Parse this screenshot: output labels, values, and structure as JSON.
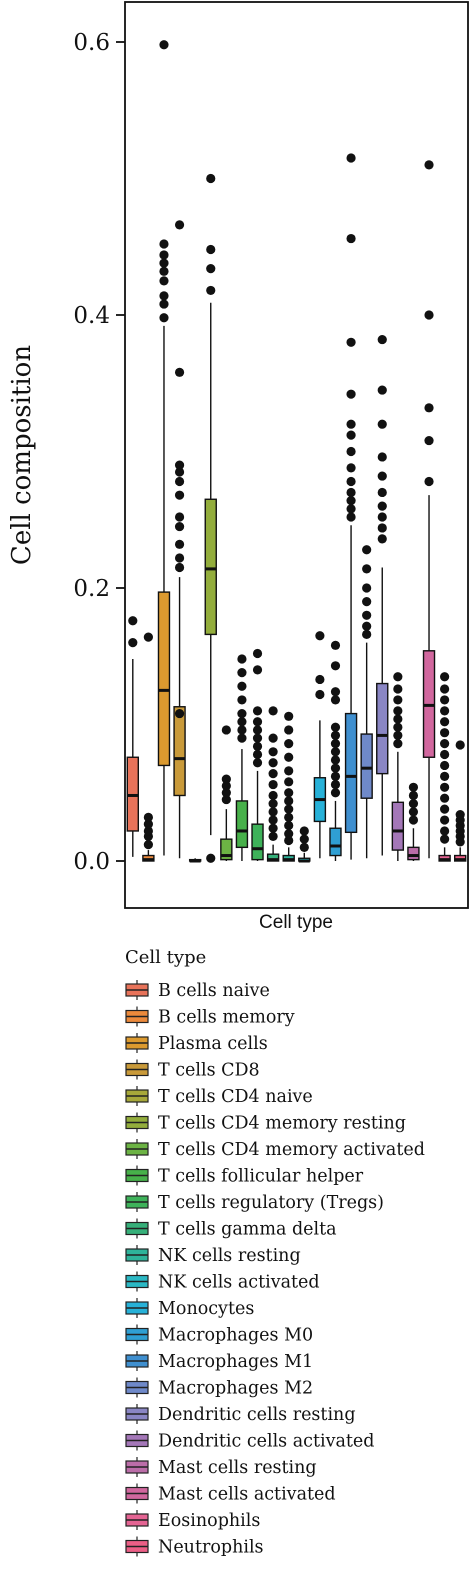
{
  "chart_data": {
    "type": "box",
    "title": "",
    "ylabel": "Cell composition",
    "xlabel": "Cell type",
    "ylim": [
      -0.012,
      0.63
    ],
    "yticks": [
      0.0,
      0.2,
      0.4,
      0.6
    ],
    "ytick_labels": [
      "0.0",
      "0.2",
      "0.4",
      "0.6"
    ],
    "grid": false,
    "legend": {
      "title": "Cell type",
      "placement": "bottom"
    },
    "categories": [
      "B cells naive",
      "B cells memory",
      "Plasma cells",
      "T cells CD8",
      "T cells CD4 naive",
      "T cells CD4 memory resting",
      "T cells CD4 memory activated",
      "T cells follicular helper",
      "T cells regulatory (Tregs)",
      "T cells gamma delta",
      "NK cells resting",
      "NK cells activated",
      "Monocytes",
      "Macrophages M0",
      "Macrophages M1",
      "Macrophages M2",
      "Dendritic cells resting",
      "Dendritic cells activated",
      "Mast cells resting",
      "Mast cells activated",
      "Eosinophils",
      "Neutrophils"
    ],
    "colors": [
      "#e8735a",
      "#ec8a3c",
      "#dc9a2f",
      "#c99a3a",
      "#a7a83a",
      "#93ad3c",
      "#6cb344",
      "#47b04a",
      "#3eb25a",
      "#36b07a",
      "#2eb39a",
      "#2bb8c4",
      "#27b1d8",
      "#2f9fd3",
      "#3f8fcf",
      "#6f89c9",
      "#8a86c4",
      "#a477b8",
      "#bb6da8",
      "#d1679e",
      "#e46493",
      "#ec5f86"
    ],
    "boxes": [
      {
        "min": 0.003,
        "q1": 0.022,
        "median": 0.048,
        "q3": 0.076,
        "max": 0.148,
        "outliers": [
          0.16,
          0.176
        ]
      },
      {
        "min": 0.0,
        "q1": 0.0,
        "median": 0.001,
        "q3": 0.004,
        "max": 0.008,
        "outliers": [
          0.012,
          0.018,
          0.022,
          0.027,
          0.032,
          0.164
        ]
      },
      {
        "min": 0.004,
        "q1": 0.07,
        "median": 0.125,
        "q3": 0.197,
        "max": 0.392,
        "outliers": [
          0.398,
          0.408,
          0.414,
          0.425,
          0.432,
          0.438,
          0.444,
          0.452,
          0.598
        ]
      },
      {
        "min": 0.002,
        "q1": 0.048,
        "median": 0.075,
        "q3": 0.113,
        "max": 0.208,
        "outliers": [
          0.108,
          0.215,
          0.222,
          0.232,
          0.245,
          0.252,
          0.268,
          0.278,
          0.285,
          0.29,
          0.358,
          0.466
        ]
      },
      {
        "min": 0.0,
        "q1": 0.0,
        "median": 0.0,
        "q3": 0.001,
        "max": 0.002,
        "outliers": []
      },
      {
        "min": 0.019,
        "q1": 0.166,
        "median": 0.214,
        "q3": 0.265,
        "max": 0.409,
        "outliers": [
          0.002,
          0.418,
          0.434,
          0.448,
          0.5
        ]
      },
      {
        "min": 0.0,
        "q1": 0.001,
        "median": 0.004,
        "q3": 0.016,
        "max": 0.038,
        "outliers": [
          0.045,
          0.05,
          0.055,
          0.06,
          0.096
        ]
      },
      {
        "min": 0.0,
        "q1": 0.01,
        "median": 0.022,
        "q3": 0.044,
        "max": 0.082,
        "outliers": [
          0.09,
          0.096,
          0.102,
          0.108,
          0.118,
          0.128,
          0.138,
          0.148
        ]
      },
      {
        "min": 0.0,
        "q1": 0.001,
        "median": 0.009,
        "q3": 0.027,
        "max": 0.066,
        "outliers": [
          0.072,
          0.078,
          0.084,
          0.09,
          0.096,
          0.102,
          0.11,
          0.14,
          0.152
        ]
      },
      {
        "min": 0.0,
        "q1": 0.0,
        "median": 0.001,
        "q3": 0.005,
        "max": 0.012,
        "outliers": [
          0.018,
          0.024,
          0.03,
          0.036,
          0.042,
          0.048,
          0.056,
          0.064,
          0.072,
          0.08,
          0.09,
          0.11
        ]
      },
      {
        "min": 0.0,
        "q1": 0.0,
        "median": 0.001,
        "q3": 0.004,
        "max": 0.01,
        "outliers": [
          0.015,
          0.02,
          0.026,
          0.032,
          0.038,
          0.044,
          0.05,
          0.058,
          0.066,
          0.076,
          0.086,
          0.096,
          0.106
        ]
      },
      {
        "min": 0.0,
        "q1": 0.0,
        "median": 0.0,
        "q3": 0.002,
        "max": 0.006,
        "outliers": [
          0.01,
          0.016,
          0.022
        ]
      },
      {
        "min": 0.002,
        "q1": 0.029,
        "median": 0.045,
        "q3": 0.061,
        "max": 0.103,
        "outliers": [
          0.122,
          0.133,
          0.165
        ]
      },
      {
        "min": 0.0,
        "q1": 0.004,
        "median": 0.011,
        "q3": 0.024,
        "max": 0.044,
        "outliers": [
          0.05,
          0.056,
          0.062,
          0.068,
          0.074,
          0.08,
          0.086,
          0.092,
          0.098,
          0.118,
          0.124,
          0.143,
          0.158
        ]
      },
      {
        "min": 0.001,
        "q1": 0.021,
        "median": 0.062,
        "q3": 0.108,
        "max": 0.246,
        "outliers": [
          0.252,
          0.258,
          0.264,
          0.27,
          0.278,
          0.288,
          0.3,
          0.312,
          0.32,
          0.342,
          0.38,
          0.456,
          0.515
        ]
      },
      {
        "min": 0.002,
        "q1": 0.046,
        "median": 0.068,
        "q3": 0.093,
        "max": 0.16,
        "outliers": [
          0.166,
          0.172,
          0.18,
          0.19,
          0.2,
          0.214,
          0.228
        ]
      },
      {
        "min": 0.004,
        "q1": 0.064,
        "median": 0.092,
        "q3": 0.13,
        "max": 0.215,
        "outliers": [
          0.236,
          0.244,
          0.252,
          0.26,
          0.27,
          0.282,
          0.296,
          0.32,
          0.345,
          0.382
        ]
      },
      {
        "min": 0.0,
        "q1": 0.008,
        "median": 0.022,
        "q3": 0.043,
        "max": 0.08,
        "outliers": [
          0.086,
          0.092,
          0.098,
          0.104,
          0.11,
          0.118,
          0.126,
          0.135
        ]
      },
      {
        "min": 0.0,
        "q1": 0.001,
        "median": 0.004,
        "q3": 0.01,
        "max": 0.024,
        "outliers": [
          0.03,
          0.036,
          0.042,
          0.048,
          0.054
        ]
      },
      {
        "min": 0.002,
        "q1": 0.076,
        "median": 0.114,
        "q3": 0.154,
        "max": 0.268,
        "outliers": [
          0.278,
          0.308,
          0.332,
          0.4,
          0.51
        ]
      },
      {
        "min": 0.0,
        "q1": 0.0,
        "median": 0.001,
        "q3": 0.004,
        "max": 0.01,
        "outliers": [
          0.016,
          0.022,
          0.03,
          0.038,
          0.046,
          0.054,
          0.062,
          0.07,
          0.078,
          0.086,
          0.094,
          0.102,
          0.11,
          0.118,
          0.126,
          0.135
        ]
      },
      {
        "min": 0.0,
        "q1": 0.0,
        "median": 0.001,
        "q3": 0.004,
        "max": 0.01,
        "outliers": [
          0.014,
          0.018,
          0.022,
          0.026,
          0.03,
          0.034,
          0.085
        ]
      }
    ]
  }
}
